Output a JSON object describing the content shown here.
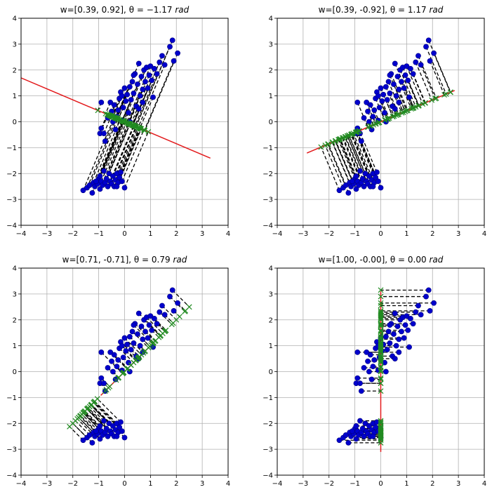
{
  "chart_data": [
    {
      "type": "scatter",
      "title_prefix": "w=[0.39, 0.92], ",
      "title_theta": "θ = −1.17",
      "title_unit": "rad",
      "w": [
        0.39,
        0.92
      ],
      "theta": -1.17,
      "xlim": [
        -4,
        4
      ],
      "ylim": [
        -4,
        4
      ],
      "xticks": [
        "−4",
        "−3",
        "−2",
        "−1",
        "0",
        "1",
        "2",
        "3",
        "4"
      ],
      "yticks": [
        "−4",
        "−3",
        "−2",
        "−1",
        "0",
        "1",
        "2",
        "3",
        "4"
      ],
      "grid": true,
      "line_range": [
        -4.35,
        3.6
      ]
    },
    {
      "type": "scatter",
      "title_prefix": "w=[0.39, -0.92], ",
      "title_theta": "θ = 1.17",
      "title_unit": "rad",
      "w": [
        0.39,
        -0.92
      ],
      "theta": 1.17,
      "xlim": [
        -4,
        4
      ],
      "ylim": [
        -4,
        4
      ],
      "xticks": [
        "−4",
        "−3",
        "−2",
        "−1",
        "0",
        "1",
        "2",
        "3",
        "4"
      ],
      "yticks": [
        "−4",
        "−3",
        "−2",
        "−1",
        "0",
        "1",
        "2",
        "3",
        "4"
      ],
      "grid": true,
      "line_range": [
        -3.1,
        3.1
      ]
    },
    {
      "type": "scatter",
      "title_prefix": "w=[0.71, -0.71], ",
      "title_theta": "θ = 0.79",
      "title_unit": "rad",
      "w": [
        0.71,
        -0.71
      ],
      "theta": 0.79,
      "xlim": [
        -4,
        4
      ],
      "ylim": [
        -4,
        4
      ],
      "xticks": [
        "−4",
        "−3",
        "−2",
        "−1",
        "0",
        "1",
        "2",
        "3",
        "4"
      ],
      "yticks": [
        "−4",
        "−3",
        "−2",
        "−1",
        "0",
        "1",
        "2",
        "3",
        "4"
      ],
      "grid": true,
      "line_range": [
        -1.3,
        1.3
      ]
    },
    {
      "type": "scatter",
      "title_prefix": "w=[1.00, -0.00], ",
      "title_theta": "θ = 0.00",
      "title_unit": "rad",
      "w": [
        1.0,
        0.0
      ],
      "theta": 0.0,
      "xlim": [
        -4,
        4
      ],
      "ylim": [
        -4,
        4
      ],
      "xticks": [
        "−4",
        "−3",
        "−2",
        "−1",
        "0",
        "1",
        "2",
        "3",
        "4"
      ],
      "yticks": [
        "−4",
        "−3",
        "−2",
        "−1",
        "0",
        "1",
        "2",
        "3",
        "4"
      ],
      "grid": true,
      "line_range": [
        -3.1,
        3.1
      ]
    }
  ],
  "points": [
    [
      -1.6,
      -2.65
    ],
    [
      -1.45,
      -2.55
    ],
    [
      -1.35,
      -2.45
    ],
    [
      -1.25,
      -2.75
    ],
    [
      -1.2,
      -2.35
    ],
    [
      -1.15,
      -2.5
    ],
    [
      -1.05,
      -2.4
    ],
    [
      -1.0,
      -2.2
    ],
    [
      -0.95,
      -2.6
    ],
    [
      -0.9,
      -2.3
    ],
    [
      -0.85,
      -2.45
    ],
    [
      -0.8,
      -1.9
    ],
    [
      -0.75,
      -2.35
    ],
    [
      -0.7,
      -2.2
    ],
    [
      -0.65,
      -2.5
    ],
    [
      -0.6,
      -2.0
    ],
    [
      -0.55,
      -2.3
    ],
    [
      -0.5,
      -2.4
    ],
    [
      -0.45,
      -2.1
    ],
    [
      -0.4,
      -2.5
    ],
    [
      -0.35,
      -2.25
    ],
    [
      -0.3,
      -2.0
    ],
    [
      -0.25,
      -2.35
    ],
    [
      -0.2,
      -2.15
    ],
    [
      -0.15,
      -1.95
    ],
    [
      -0.1,
      -2.3
    ],
    [
      0.0,
      -2.55
    ],
    [
      -0.95,
      -2.1
    ],
    [
      -1.1,
      -2.3
    ],
    [
      -0.3,
      -2.5
    ],
    [
      -0.9,
      0.75
    ],
    [
      -0.95,
      -0.45
    ],
    [
      -0.9,
      -0.25
    ],
    [
      -0.75,
      -0.75
    ],
    [
      -0.8,
      -0.45
    ],
    [
      -0.65,
      0.15
    ],
    [
      -0.55,
      0.75
    ],
    [
      -0.5,
      0.4
    ],
    [
      -0.45,
      0.0
    ],
    [
      -0.4,
      0.65
    ],
    [
      -0.35,
      -0.3
    ],
    [
      -0.3,
      0.2
    ],
    [
      -0.25,
      0.45
    ],
    [
      -0.2,
      0.9
    ],
    [
      -0.15,
      1.15
    ],
    [
      -0.1,
      0.05
    ],
    [
      -0.05,
      0.55
    ],
    [
      0.0,
      1.3
    ],
    [
      0.05,
      0.8
    ],
    [
      0.1,
      1.05
    ],
    [
      0.15,
      0.35
    ],
    [
      0.2,
      1.35
    ],
    [
      0.25,
      0.85
    ],
    [
      0.3,
      1.55
    ],
    [
      0.35,
      1.1
    ],
    [
      0.4,
      1.85
    ],
    [
      0.45,
      0.6
    ],
    [
      0.5,
      1.45
    ],
    [
      0.55,
      2.25
    ],
    [
      0.6,
      1.0
    ],
    [
      0.65,
      1.75
    ],
    [
      0.7,
      1.25
    ],
    [
      0.75,
      2.0
    ],
    [
      0.8,
      1.55
    ],
    [
      0.85,
      2.1
    ],
    [
      0.9,
      1.3
    ],
    [
      0.95,
      1.8
    ],
    [
      1.0,
      2.15
    ],
    [
      1.05,
      1.6
    ],
    [
      1.1,
      0.95
    ],
    [
      1.15,
      2.05
    ],
    [
      1.25,
      1.85
    ],
    [
      1.35,
      2.3
    ],
    [
      1.45,
      2.55
    ],
    [
      1.55,
      2.2
    ],
    [
      1.75,
      2.9
    ],
    [
      1.85,
      3.15
    ],
    [
      1.9,
      2.35
    ],
    [
      2.05,
      2.65
    ],
    [
      0.55,
      0.5
    ],
    [
      0.2,
      0.0
    ],
    [
      -0.1,
      1.0
    ],
    [
      0.7,
      0.75
    ],
    [
      0.35,
      1.8
    ]
  ]
}
